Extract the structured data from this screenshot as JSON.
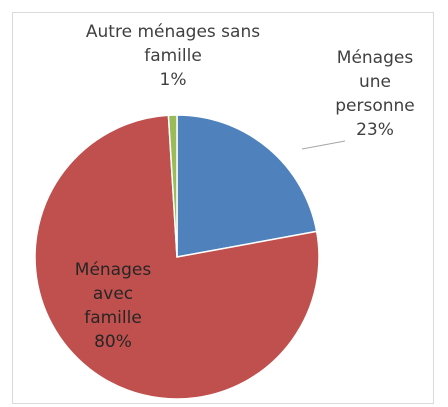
{
  "chart_data": {
    "type": "pie",
    "categories": [
      "Ménages une personne",
      "Ménages avec famille",
      "Autre ménages sans famille"
    ],
    "values": [
      23,
      80,
      1
    ],
    "value_labels": [
      "23%",
      "80%",
      "1%"
    ],
    "colors": [
      "#4f81bd",
      "#c0504d",
      "#9bbb59"
    ]
  }
}
